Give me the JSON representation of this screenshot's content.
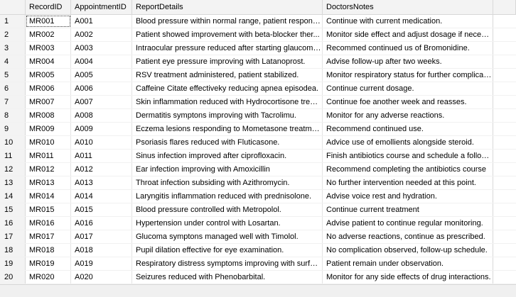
{
  "columns": {
    "row_number": "",
    "record_id": "RecordID",
    "appointment_id": "AppointmentID",
    "report_details": "ReportDetails",
    "doctors_notes": "DoctorsNotes"
  },
  "rows": [
    {
      "n": "1",
      "record_id": "MR001",
      "appointment_id": "A001",
      "report_details": "Blood pressure within normal range, patient respondi...",
      "doctors_notes": "Continue with current medication."
    },
    {
      "n": "2",
      "record_id": "MR002",
      "appointment_id": "A002",
      "report_details": "Patient showed improvement with beta-blocker ther...",
      "doctors_notes": "Monitor side effect and adjust dosage if necesary."
    },
    {
      "n": "3",
      "record_id": "MR003",
      "appointment_id": "A003",
      "report_details": "Intraocular pressure reduced after starting glaucoma...",
      "doctors_notes": "Recommed continued us of Bromonidine."
    },
    {
      "n": "4",
      "record_id": "MR004",
      "appointment_id": "A004",
      "report_details": "Patient eye pressure improving with Latanoprost.",
      "doctors_notes": "Advise follow-up after two weeks."
    },
    {
      "n": "5",
      "record_id": "MR005",
      "appointment_id": "A005",
      "report_details": "RSV treatment administered, patient stabilized.",
      "doctors_notes": "Monitor respiratory status for further complication."
    },
    {
      "n": "6",
      "record_id": "MR006",
      "appointment_id": "A006",
      "report_details": "Caffeine Citate effectiveky reducing apnea episodea.",
      "doctors_notes": "Continue current dosage."
    },
    {
      "n": "7",
      "record_id": "MR007",
      "appointment_id": "A007",
      "report_details": "Skin inflammation reduced with Hydrocortisone treat...",
      "doctors_notes": "Continue foe another week and reasses."
    },
    {
      "n": "8",
      "record_id": "MR008",
      "appointment_id": "A008",
      "report_details": "Dermatitis symptons improving with Tacrolimu.",
      "doctors_notes": "Monitor for any adverse reactions."
    },
    {
      "n": "9",
      "record_id": "MR009",
      "appointment_id": "A009",
      "report_details": "Eczema lesions responding to Mometasone treatment.",
      "doctors_notes": "Recommend continued use."
    },
    {
      "n": "10",
      "record_id": "MR010",
      "appointment_id": "A010",
      "report_details": "Psoriasis flares reduced with Fluticasone.",
      "doctors_notes": "Advice use of emollients alongside steroid."
    },
    {
      "n": "11",
      "record_id": "MR011",
      "appointment_id": "A011",
      "report_details": "Sinus infection improved after ciprofloxacin.",
      "doctors_notes": "Finish antibiotics course and schedule a follow ..."
    },
    {
      "n": "12",
      "record_id": "MR012",
      "appointment_id": "A012",
      "report_details": "Ear infection improving with Amoxicillin",
      "doctors_notes": "Recommend completing the antibiotics course"
    },
    {
      "n": "13",
      "record_id": "MR013",
      "appointment_id": "A013",
      "report_details": "Throat infection subsiding with Azithromycin.",
      "doctors_notes": "No further intervention needed at this point."
    },
    {
      "n": "14",
      "record_id": "MR014",
      "appointment_id": "A014",
      "report_details": "Laryngitis inflammation reduced with prednisolone.",
      "doctors_notes": "Advise voice rest and hydration."
    },
    {
      "n": "15",
      "record_id": "MR015",
      "appointment_id": "A015",
      "report_details": "Blood pressure controlled with Metropolol.",
      "doctors_notes": "Continue current treatment"
    },
    {
      "n": "16",
      "record_id": "MR016",
      "appointment_id": "A016",
      "report_details": "Hypertension under control with Losartan.",
      "doctors_notes": "Advise patient to continue regular monitoring."
    },
    {
      "n": "17",
      "record_id": "MR017",
      "appointment_id": "A017",
      "report_details": "Glucoma symptons managed well with Timolol.",
      "doctors_notes": "No adverse reactions, continue as prescribed."
    },
    {
      "n": "18",
      "record_id": "MR018",
      "appointment_id": "A018",
      "report_details": "Pupil dilation effective for eye examination.",
      "doctors_notes": "No complication observed, follow-up schedule."
    },
    {
      "n": "19",
      "record_id": "MR019",
      "appointment_id": "A019",
      "report_details": "Respiratory distress symptoms improving with surfact...",
      "doctors_notes": "Patient remain under observation."
    },
    {
      "n": "20",
      "record_id": "MR020",
      "appointment_id": "A020",
      "report_details": "Seizures reduced with Phenobarbital.",
      "doctors_notes": "Monitor for any side effects of drug interactions."
    }
  ],
  "selection": {
    "row": 0,
    "column": "record_id"
  },
  "colors": {
    "header_bg": "#f3f3f3",
    "grid_line": "#e4e4e4",
    "selection_outline": "#333333",
    "empty_area": "#f0f0f0"
  }
}
